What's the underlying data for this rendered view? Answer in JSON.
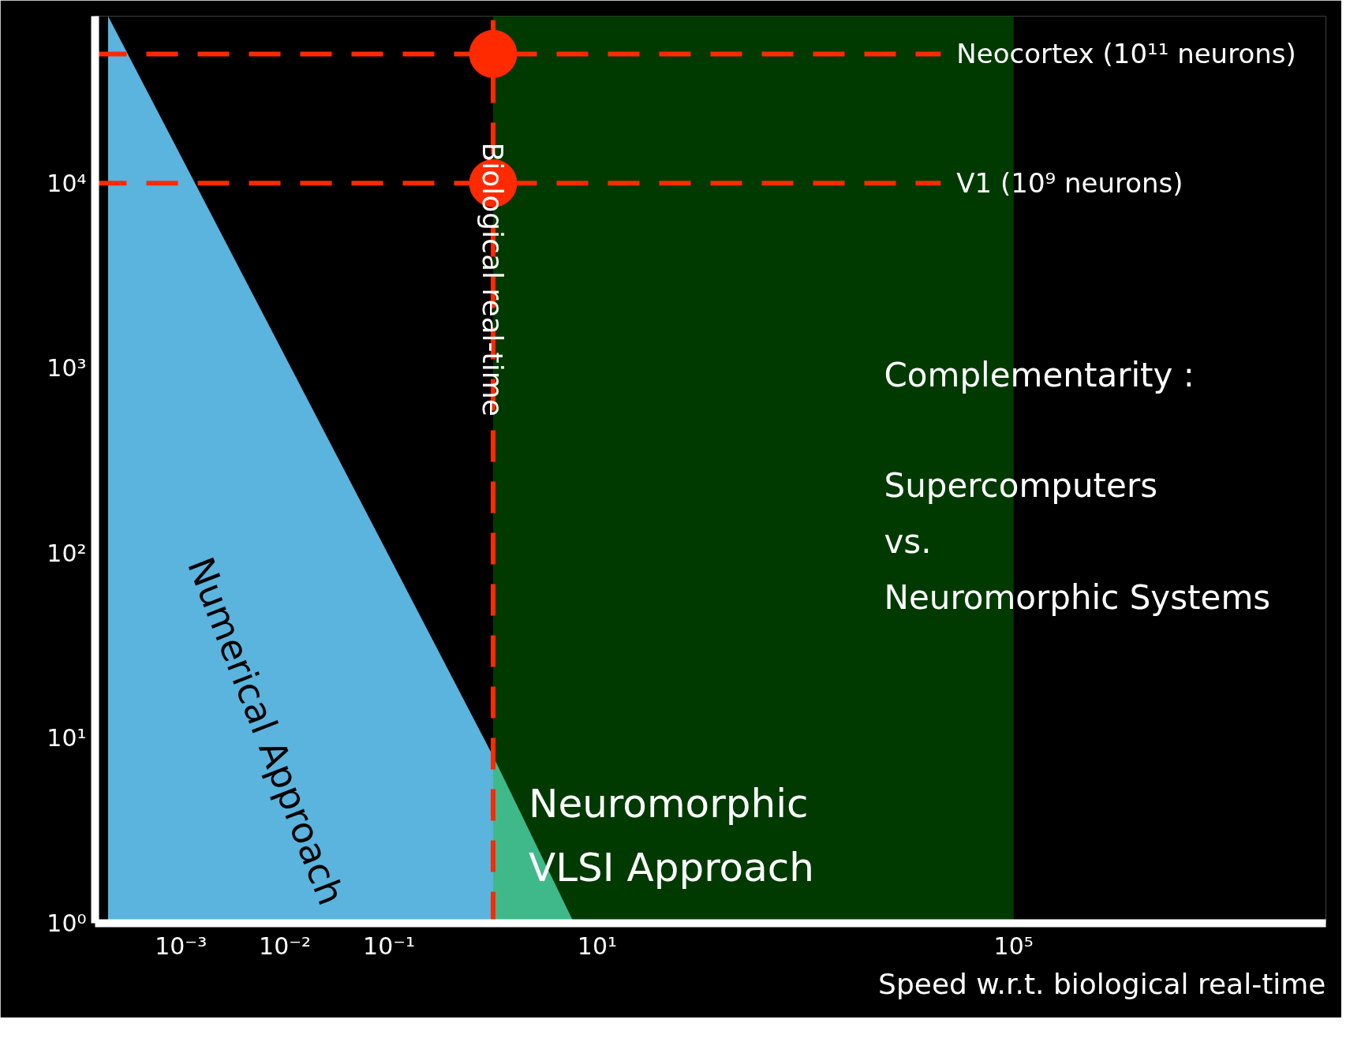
{
  "chart_data": {
    "type": "area",
    "xlabel": "Speed w.r.t. biological real-time",
    "series": [
      {
        "name": "Numerical Approach",
        "color": "#5ab4de",
        "x": [
          0.0002,
          1
        ],
        "values": [
          80000,
          8
        ]
      },
      {
        "type": "area",
        "color": "#3fb98a",
        "x": [
          1,
          6
        ],
        "values": [
          8,
          1
        ]
      },
      {
        "type": "scatter",
        "color": "#ff2a00",
        "x": [
          1,
          1
        ],
        "values": [
          50000,
          10000
        ]
      }
    ],
    "log": "xy",
    "xlim": [
      0.00015,
      100000000
    ],
    "ylim": [
      1,
      80000
    ],
    "xticks": [
      {
        "value": 0.001,
        "label": "10⁻³"
      },
      {
        "value": 0.01,
        "label": "10⁻²"
      },
      {
        "value": 0.1,
        "label": "10⁻¹"
      },
      {
        "value": 10,
        "label": "10¹"
      },
      {
        "value": 100000,
        "label": "10⁵"
      }
    ],
    "yticks": [
      {
        "value": 1,
        "label": "10⁰"
      },
      {
        "value": 10,
        "label": "10¹"
      },
      {
        "value": 100,
        "label": "10²"
      },
      {
        "value": 1000,
        "label": "10³"
      },
      {
        "value": 10000,
        "label": "10⁴"
      }
    ],
    "bands": [
      {
        "axis": "x",
        "from": 1,
        "to": 100000,
        "label": "Neuromorphic\nVLSI Approach",
        "color": "#003a00"
      }
    ],
    "ref_lines": [
      {
        "axis": "x",
        "value": 1,
        "label": "Biological real-time",
        "color": "#ff2a00",
        "line_style": "dashed"
      },
      {
        "axis": "y",
        "value": 50000,
        "label": "Neocortex (10¹¹ neurons)",
        "color": "#ff2a00",
        "line_style": "dashed"
      },
      {
        "axis": "y",
        "value": 10000,
        "label": "V1 (10⁹ neurons)",
        "color": "#ff2a00",
        "line_style": "dashed"
      }
    ],
    "annotations": [
      "Complementarity :",
      "Supercomputers\nvs.\nNeuromorphic Systems"
    ],
    "grid": false
  }
}
